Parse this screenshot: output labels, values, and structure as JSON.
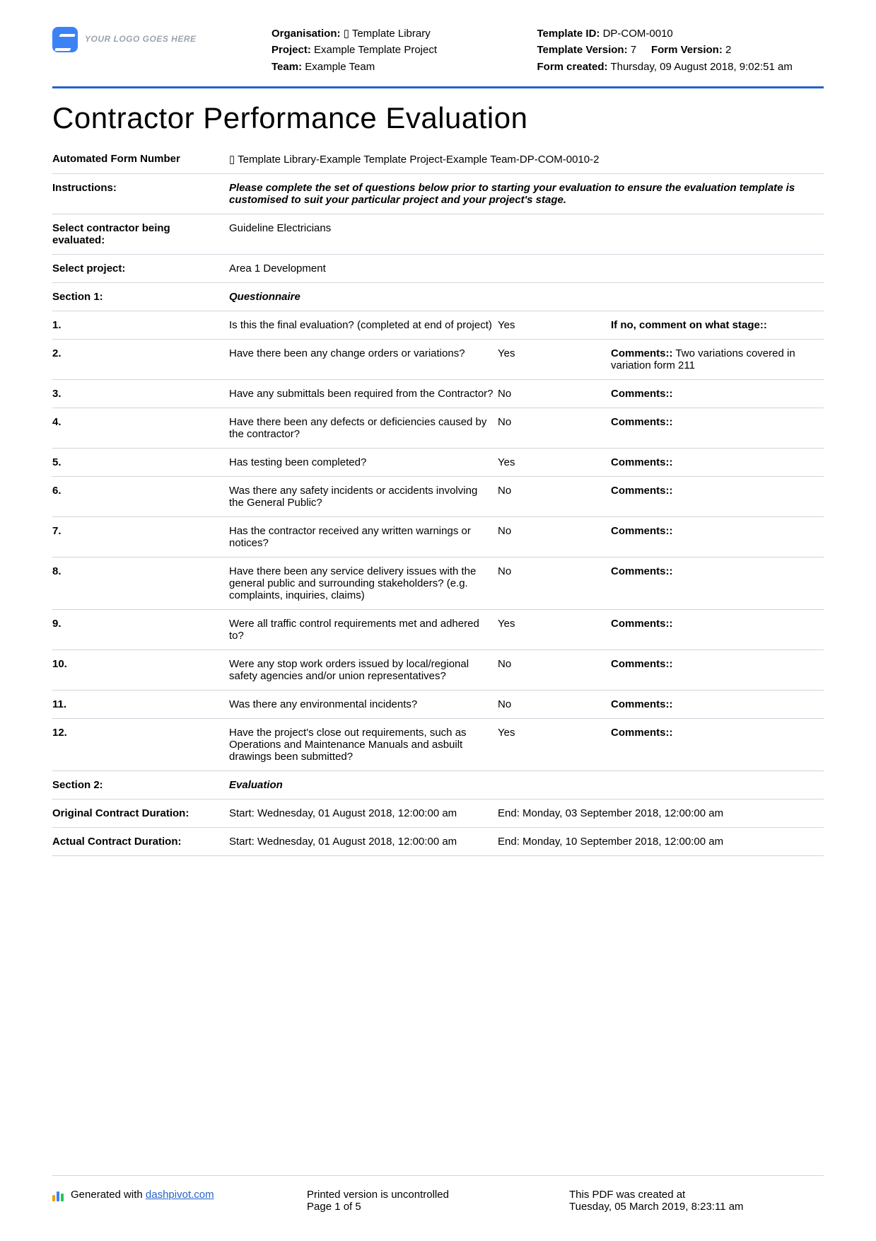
{
  "logo_placeholder": "YOUR LOGO GOES HERE",
  "header": {
    "org_label": "Organisation:",
    "org_value": "▯ Template Library",
    "project_label": "Project:",
    "project_value": "Example Template Project",
    "team_label": "Team:",
    "team_value": "Example Team",
    "template_id_label": "Template ID:",
    "template_id_value": "DP-COM-0010",
    "template_version_label": "Template Version:",
    "template_version_value": "7",
    "form_version_label": "Form Version:",
    "form_version_value": "2",
    "form_created_label": "Form created:",
    "form_created_value": "Thursday, 09 August 2018, 9:02:51 am"
  },
  "title": "Contractor Performance Evaluation",
  "meta_rows": {
    "afn_label": "Automated Form Number",
    "afn_value": "▯ Template Library-Example Template Project-Example Team-DP-COM-0010-2",
    "instructions_label": "Instructions:",
    "instructions_value": "Please complete the set of questions below prior to starting your evaluation to ensure the evaluation template is customised to suit your particular project and your project's stage.",
    "contractor_label": "Select contractor being evaluated:",
    "contractor_value": "Guideline Electricians",
    "project_label": "Select project:",
    "project_value": "Area 1 Development",
    "section1_label": "Section 1:",
    "section1_value": "Questionnaire",
    "section2_label": "Section 2:",
    "section2_value": "Evaluation"
  },
  "questions": [
    {
      "num": "1.",
      "q": "Is this the final evaluation? (completed at end of project)",
      "ans": "Yes",
      "cl": "If no, comment on what stage::",
      "cv": ""
    },
    {
      "num": "2.",
      "q": "Have there been any change orders or variations?",
      "ans": "Yes",
      "cl": "Comments::",
      "cv": " Two variations covered in variation form 211"
    },
    {
      "num": "3.",
      "q": "Have any submittals been required from the Contractor?",
      "ans": "No",
      "cl": "Comments::",
      "cv": ""
    },
    {
      "num": "4.",
      "q": "Have there been any defects or deficiencies caused by the contractor?",
      "ans": "No",
      "cl": "Comments::",
      "cv": ""
    },
    {
      "num": "5.",
      "q": "Has testing been completed?",
      "ans": "Yes",
      "cl": "Comments::",
      "cv": ""
    },
    {
      "num": "6.",
      "q": "Was there any safety incidents or accidents involving the General Public?",
      "ans": "No",
      "cl": "Comments::",
      "cv": ""
    },
    {
      "num": "7.",
      "q": "Has the contractor received any written warnings or notices?",
      "ans": "No",
      "cl": "Comments::",
      "cv": ""
    },
    {
      "num": "8.",
      "q": "Have there been any service delivery issues with the general public and surrounding stakeholders? (e.g. complaints, inquiries, claims)",
      "ans": "No",
      "cl": "Comments::",
      "cv": ""
    },
    {
      "num": "9.",
      "q": "Were all traffic control requirements met and adhered to?",
      "ans": "Yes",
      "cl": "Comments::",
      "cv": ""
    },
    {
      "num": "10.",
      "q": "Were any stop work orders issued by local/regional safety agencies and/or union representatives?",
      "ans": "No",
      "cl": "Comments::",
      "cv": ""
    },
    {
      "num": "11.",
      "q": "Was there any environmental incidents?",
      "ans": "No",
      "cl": "Comments::",
      "cv": ""
    },
    {
      "num": "12.",
      "q": "Have the project's close out requirements, such as Operations and Maintenance Manuals and asbuilt drawings been submitted?",
      "ans": "Yes",
      "cl": "Comments::",
      "cv": ""
    }
  ],
  "durations": {
    "orig_label": "Original Contract Duration:",
    "orig_start": "Start: Wednesday, 01 August 2018, 12:00:00 am",
    "orig_end": "End: Monday, 03 September 2018, 12:00:00 am",
    "actual_label": "Actual Contract Duration:",
    "actual_start": "Start: Wednesday, 01 August 2018, 12:00:00 am",
    "actual_end": "End: Monday, 10 September 2018, 12:00:00 am"
  },
  "footer": {
    "gen_prefix": "Generated with ",
    "gen_link": "dashpivot.com",
    "uncontrolled": "Printed version is uncontrolled",
    "page": "Page 1 of 5",
    "created_label": "This PDF was created at",
    "created_value": "Tuesday, 05 March 2019, 8:23:11 am"
  }
}
